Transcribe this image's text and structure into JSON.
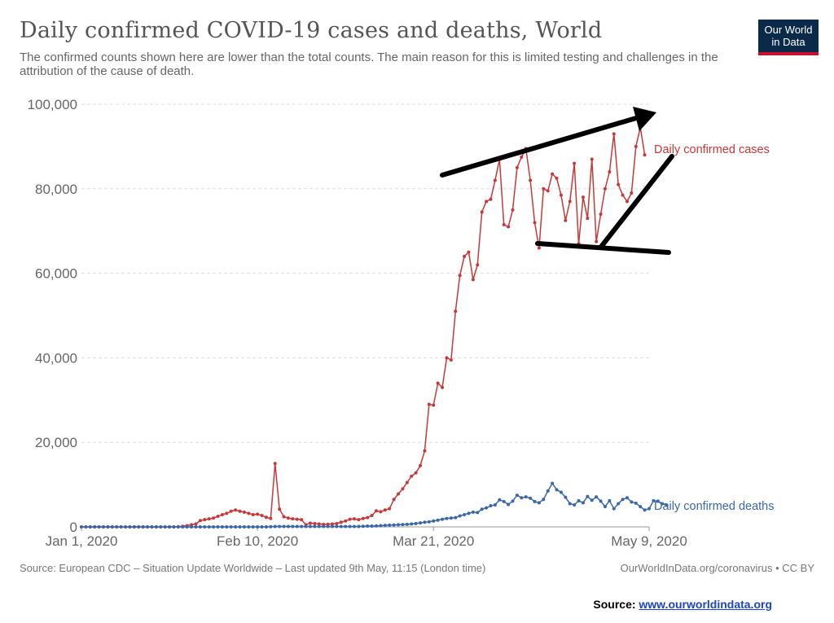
{
  "header": {
    "title": "Daily confirmed COVID-19 cases and deaths, World",
    "subtitle": "The confirmed counts shown here are lower than the total counts. The main reason for this is limited testing and challenges in the attribution of the cause of death."
  },
  "logo": {
    "line1": "Our World",
    "line2": "in Data"
  },
  "footer": {
    "source": "Source: European CDC – Situation Update Worldwide – Last updated 9th May, 11:15 (London time)",
    "credit": "OurWorldInData.org/coronavirus • CC BY"
  },
  "source_note": {
    "label": "Source:",
    "link_text": "www.ourworldindata.org"
  },
  "colors": {
    "cases": "#c93838",
    "deaths": "#3b67a8",
    "grid": "#dddddd",
    "annotation": "#000000"
  },
  "chart_data": {
    "type": "line",
    "title": "Daily confirmed COVID-19 cases and deaths, World",
    "x_tick_labels": [
      "Jan 1, 2020",
      "Feb 10, 2020",
      "Mar 21, 2020",
      "May 9, 2020"
    ],
    "x_tick_days": [
      0,
      40,
      80,
      129
    ],
    "x_range_days": [
      0,
      129
    ],
    "y_tick_labels": [
      "0",
      "20,000",
      "40,000",
      "60,000",
      "80,000",
      "100,000"
    ],
    "y_ticks": [
      0,
      20000,
      40000,
      60000,
      80000,
      100000
    ],
    "ylim": [
      0,
      100000
    ],
    "grid": "horizontal dashed",
    "series": [
      {
        "name": "Daily confirmed cases",
        "color": "#c93838",
        "values": [
          0,
          0,
          0,
          0,
          0,
          0,
          0,
          0,
          0,
          0,
          0,
          0,
          0,
          0,
          0,
          0,
          0,
          0,
          0,
          0,
          0,
          0,
          50,
          150,
          300,
          500,
          700,
          1500,
          1700,
          1900,
          2100,
          2500,
          2900,
          3200,
          3700,
          4000,
          3700,
          3500,
          3200,
          2900,
          3000,
          2700,
          2300,
          2000,
          15000,
          4200,
          2400,
          2100,
          1900,
          1800,
          1700,
          500,
          900,
          800,
          700,
          600,
          600,
          700,
          800,
          1100,
          1400,
          1800,
          1900,
          1700,
          2000,
          2200,
          2700,
          3800,
          3600,
          4000,
          4300,
          6500,
          7800,
          9000,
          10500,
          12000,
          12800,
          14500,
          18000,
          29000,
          28800,
          34000,
          33000,
          40000,
          39500,
          51000,
          59500,
          64000,
          65000,
          58500,
          62000,
          74500,
          77000,
          77500,
          82000,
          87000,
          71500,
          71000,
          75000,
          85000,
          87500,
          89500,
          82000,
          72000,
          66000,
          80000,
          79500,
          83500,
          82500,
          78500,
          72500,
          77000,
          86000,
          67000,
          78000,
          73000,
          87000,
          67500,
          74000,
          80000,
          84000,
          93000,
          81000,
          78500,
          77000,
          79000,
          90000,
          94500,
          88000
        ],
        "end_label": "Daily confirmed cases"
      },
      {
        "name": "Daily confirmed deaths",
        "color": "#3b67a8",
        "values": [
          0,
          0,
          0,
          0,
          0,
          0,
          0,
          0,
          0,
          0,
          0,
          0,
          0,
          0,
          0,
          0,
          0,
          0,
          0,
          0,
          0,
          0,
          0,
          0,
          0,
          0,
          0,
          0,
          0,
          0,
          0,
          0,
          0,
          0,
          0,
          0,
          0,
          0,
          0,
          0,
          0,
          0,
          0,
          50,
          100,
          100,
          100,
          100,
          100,
          100,
          100,
          100,
          100,
          100,
          100,
          100,
          100,
          100,
          100,
          100,
          100,
          100,
          100,
          100,
          150,
          200,
          200,
          250,
          300,
          350,
          400,
          450,
          500,
          550,
          600,
          700,
          800,
          950,
          1100,
          1200,
          1400,
          1600,
          1800,
          2000,
          2100,
          2200,
          2600,
          2900,
          3200,
          3500,
          3400,
          4200,
          4500,
          5000,
          5200,
          6400,
          6000,
          5300,
          6100,
          7500,
          6900,
          7100,
          6800,
          6000,
          5700,
          6500,
          8500,
          10300,
          8800,
          8200,
          7000,
          5500,
          5200,
          6200,
          5700,
          7200,
          6300,
          7100,
          6100,
          4800,
          6200,
          4300,
          5500,
          6500,
          6900,
          5900,
          5600,
          4800,
          4000,
          4300,
          6200,
          6100,
          5500,
          5100
        ]
      }
    ],
    "annotations": [
      "upper trend arrow",
      "lower support line",
      "rising arrow from the low"
    ]
  }
}
